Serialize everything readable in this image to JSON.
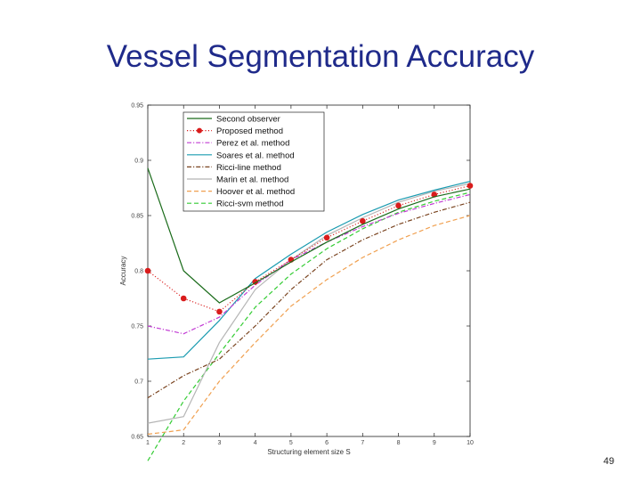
{
  "slide": {
    "title": "Vessel Segmentation Accuracy",
    "page_number": "49"
  },
  "chart_data": {
    "type": "line",
    "title": "",
    "xlabel": "Structuring element size S",
    "ylabel": "Accuracy",
    "x": [
      1,
      2,
      3,
      4,
      5,
      6,
      7,
      8,
      9,
      10
    ],
    "xlim": [
      1,
      10
    ],
    "ylim": [
      0.65,
      0.95
    ],
    "x_ticks": [
      "1",
      "2",
      "3",
      "4",
      "5",
      "6",
      "7",
      "8",
      "9",
      "10"
    ],
    "y_ticks": [
      {
        "value": 0.95,
        "label": "0.95"
      },
      {
        "value": 0.9,
        "label": "0.9"
      },
      {
        "value": 0.85,
        "label": "0.85"
      },
      {
        "value": 0.8,
        "label": "0.8"
      },
      {
        "value": 0.75,
        "label": "0.75"
      },
      {
        "value": 0.7,
        "label": "0.7"
      },
      {
        "value": 0.65,
        "label": "0.65"
      }
    ],
    "grid": false,
    "legend_position": "top-left",
    "series": [
      {
        "name": "Second observer",
        "color": "#1a6b1a",
        "dash": "solid",
        "marker": "none",
        "values": [
          0.893,
          0.8,
          0.771,
          0.789,
          0.808,
          0.826,
          0.842,
          0.856,
          0.867,
          0.874
        ]
      },
      {
        "name": "Proposed method",
        "color": "#d91c1c",
        "dash": "dotted",
        "marker": "dot",
        "values": [
          0.8,
          0.775,
          0.763,
          0.79,
          0.81,
          0.83,
          0.845,
          0.859,
          0.869,
          0.877
        ]
      },
      {
        "name": "Perez et al. method",
        "color": "#c23bd4",
        "dash": "dashdot",
        "marker": "none",
        "values": [
          0.75,
          0.743,
          0.758,
          0.787,
          0.81,
          0.826,
          0.84,
          0.852,
          0.861,
          0.869
        ]
      },
      {
        "name": "Soares et al. method",
        "color": "#1a9bb0",
        "dash": "solid",
        "marker": "none",
        "values": [
          0.72,
          0.722,
          0.755,
          0.793,
          0.815,
          0.835,
          0.851,
          0.864,
          0.873,
          0.881
        ]
      },
      {
        "name": "Ricci-line method",
        "color": "#7a4420",
        "dash": "dashdot",
        "marker": "none",
        "values": [
          0.685,
          0.705,
          0.72,
          0.75,
          0.783,
          0.81,
          0.828,
          0.842,
          0.853,
          0.862
        ]
      },
      {
        "name": "Marin et al. method",
        "color": "#b5b5b5",
        "dash": "solid",
        "marker": "none",
        "values": [
          0.662,
          0.668,
          0.735,
          0.783,
          0.81,
          0.832,
          0.848,
          0.862,
          0.872,
          0.879
        ]
      },
      {
        "name": "Hoover et al. method",
        "color": "#f0a050",
        "dash": "dashed",
        "marker": "none",
        "values": [
          0.652,
          0.656,
          0.7,
          0.735,
          0.768,
          0.792,
          0.812,
          0.828,
          0.841,
          0.85
        ]
      },
      {
        "name": "Ricci-svm method",
        "color": "#33cc33",
        "dash": "dashed",
        "marker": "none",
        "values": [
          0.628,
          0.682,
          0.725,
          0.767,
          0.797,
          0.82,
          0.838,
          0.853,
          0.863,
          0.871
        ]
      }
    ]
  }
}
